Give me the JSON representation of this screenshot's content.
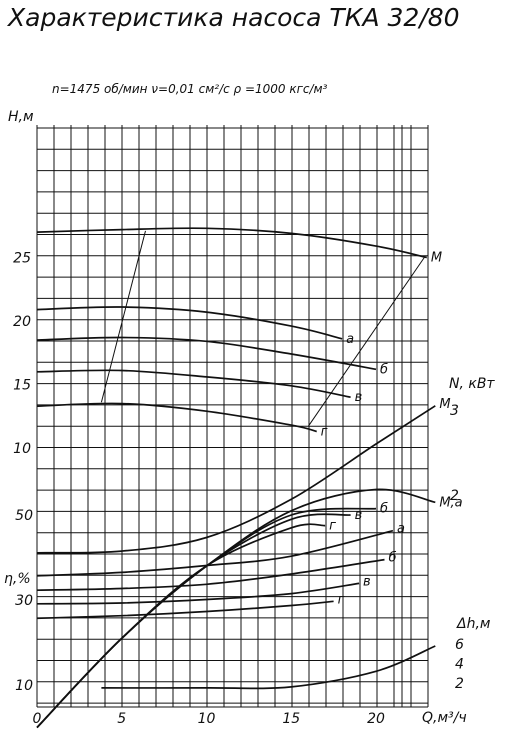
{
  "title": "Характеристика насоса ТКА 32/80",
  "conditions": "n=1475 об/мин   ν=0,01 см²/с   ρ =1000 кгс/м³",
  "chart_data": {
    "type": "line",
    "xlabel": "Q,м³/ч",
    "xlim": [
      0,
      26
    ],
    "xticks": [
      0,
      5,
      10,
      15,
      20
    ],
    "head": {
      "ylabel": "Н,м",
      "ylim": [
        0,
        29
      ],
      "yticks": [
        10,
        15,
        20,
        25
      ],
      "series": [
        {
          "name": "М",
          "x": [
            0,
            5,
            10,
            15,
            20,
            23
          ],
          "y": [
            27.0,
            27.2,
            27.3,
            26.9,
            25.9,
            25.0
          ]
        },
        {
          "name": "а",
          "x": [
            0,
            5,
            10,
            15,
            18
          ],
          "y": [
            20.9,
            21.1,
            20.7,
            19.6,
            18.6
          ]
        },
        {
          "name": "б",
          "x": [
            0,
            5,
            10,
            15,
            20
          ],
          "y": [
            18.5,
            18.7,
            18.4,
            17.4,
            16.2
          ]
        },
        {
          "name": "в",
          "x": [
            0,
            5,
            10,
            15,
            18.5
          ],
          "y": [
            16.0,
            16.1,
            15.6,
            14.9,
            14.0
          ]
        },
        {
          "name": "г",
          "x": [
            0,
            5,
            10,
            15,
            16.5
          ],
          "y": [
            13.3,
            13.5,
            12.9,
            11.8,
            11.3
          ]
        }
      ],
      "annotations": [
        {
          "label": "",
          "from": [
            3.8,
            13.6
          ],
          "to": [
            6.4,
            27.1
          ]
        },
        {
          "label": "",
          "from": [
            16.0,
            11.7
          ],
          "to": [
            22.9,
            25.1
          ]
        }
      ]
    },
    "power": {
      "ylabel": "N, кВт",
      "ylim": [
        0,
        4
      ],
      "yticks": [
        2,
        3
      ],
      "series": [
        {
          "name": "М",
          "x": [
            0,
            5,
            10,
            15,
            20,
            23.5
          ],
          "y": [
            1.32,
            1.34,
            1.5,
            1.95,
            2.6,
            3.05
          ]
        },
        {
          "name": "а",
          "x": [
            0,
            5,
            10,
            15,
            21
          ],
          "y": [
            1.05,
            1.09,
            1.17,
            1.28,
            1.58
          ]
        },
        {
          "name": "б",
          "x": [
            0,
            5,
            10,
            15,
            20.5
          ],
          "y": [
            0.88,
            0.9,
            0.95,
            1.07,
            1.24
          ]
        },
        {
          "name": "в",
          "x": [
            0,
            5,
            10,
            15,
            19
          ],
          "y": [
            0.72,
            0.73,
            0.77,
            0.84,
            0.96
          ]
        },
        {
          "name": "г",
          "x": [
            0,
            5,
            10,
            15,
            17.5
          ],
          "y": [
            0.55,
            0.58,
            0.63,
            0.7,
            0.75
          ]
        }
      ]
    },
    "efficiency": {
      "ylabel": "η,%",
      "ylim": [
        0,
        60
      ],
      "yticks": [
        10,
        30,
        50
      ],
      "series": [
        {
          "name": "М,а",
          "x": [
            0,
            5,
            10,
            15,
            20,
            23.5
          ],
          "y": [
            0,
            21,
            38,
            51,
            56,
            53
          ]
        },
        {
          "name": "б",
          "x": [
            0,
            5,
            10,
            15,
            20
          ],
          "y": [
            0,
            21,
            38,
            50,
            51.5
          ]
        },
        {
          "name": "в",
          "x": [
            0,
            5,
            10,
            15,
            18.5
          ],
          "y": [
            0,
            21,
            38,
            49,
            50
          ]
        },
        {
          "name": "г",
          "x": [
            0,
            5,
            10,
            15,
            17
          ],
          "y": [
            0,
            21,
            38,
            47,
            47.5
          ]
        }
      ]
    },
    "npsh": {
      "ylabel": "Δh,м",
      "ylim": [
        1,
        8
      ],
      "yticks": [
        2,
        4,
        6
      ],
      "series": [
        {
          "name": "",
          "x": [
            3.8,
            10,
            15,
            20,
            23.5
          ],
          "y": [
            1.5,
            1.5,
            1.6,
            3.2,
            5.8
          ]
        }
      ]
    },
    "grid": true
  }
}
